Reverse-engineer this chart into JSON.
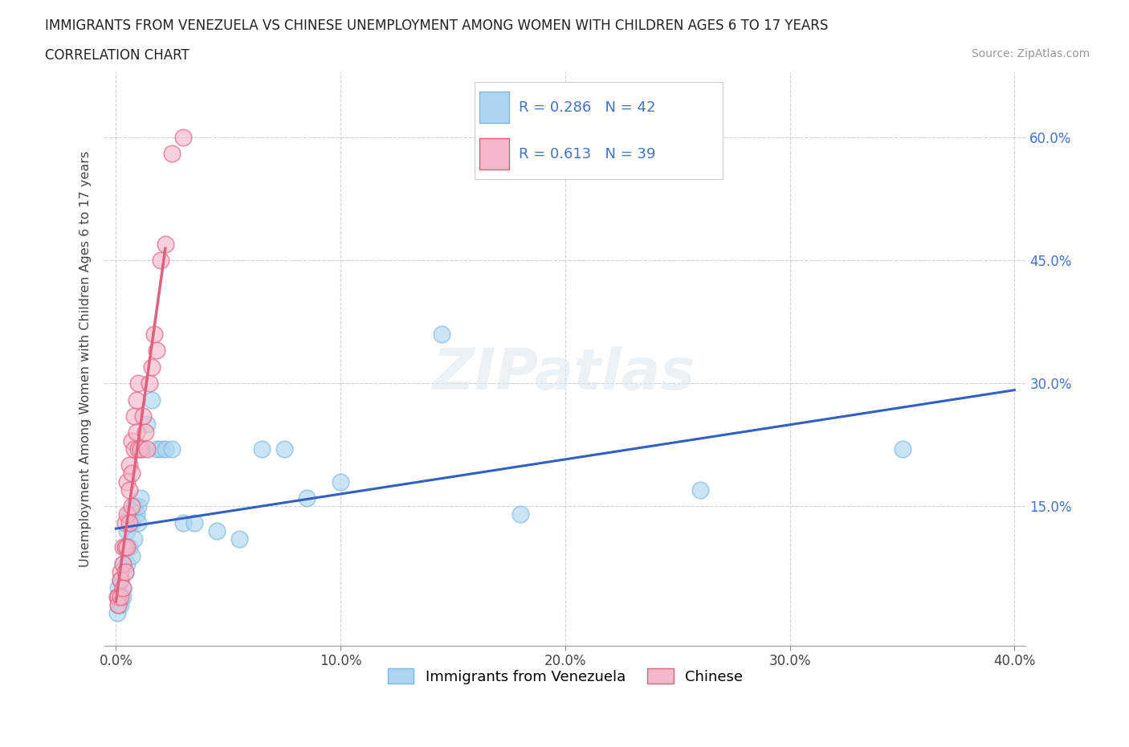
{
  "title_line1": "IMMIGRANTS FROM VENEZUELA VS CHINESE UNEMPLOYMENT AMONG WOMEN WITH CHILDREN AGES 6 TO 17 YEARS",
  "title_line2": "CORRELATION CHART",
  "source_text": "Source: ZipAtlas.com",
  "ylabel": "Unemployment Among Women with Children Ages 6 to 17 years",
  "xlim": [
    -0.005,
    0.405
  ],
  "ylim": [
    -0.02,
    0.68
  ],
  "xtick_values": [
    0.0,
    0.1,
    0.2,
    0.3,
    0.4
  ],
  "ytick_values": [
    0.15,
    0.3,
    0.45,
    0.6
  ],
  "grid_color": "#d0d0d0",
  "background_color": "#ffffff",
  "venezuela_color": "#7ab8e0",
  "venezuela_color_light": "#aed4f0",
  "chinese_color": "#f5b8c8",
  "chinese_line_color": "#e06080",
  "blue_line_color": "#3060c0",
  "R_venezuela": "0.286",
  "N_venezuela": "42",
  "R_chinese": "0.613",
  "N_chinese": "39",
  "legend_venezuela_label": "Immigrants from Venezuela",
  "legend_chinese_label": "Chinese",
  "venezuela_x": [
    0.0005,
    0.001,
    0.001,
    0.002,
    0.002,
    0.002,
    0.003,
    0.003,
    0.003,
    0.004,
    0.004,
    0.005,
    0.005,
    0.006,
    0.006,
    0.007,
    0.007,
    0.008,
    0.008,
    0.009,
    0.01,
    0.01,
    0.011,
    0.012,
    0.014,
    0.016,
    0.018,
    0.02,
    0.022,
    0.025,
    0.03,
    0.035,
    0.045,
    0.055,
    0.065,
    0.075,
    0.085,
    0.1,
    0.145,
    0.18,
    0.26,
    0.35
  ],
  "venezuela_y": [
    0.02,
    0.05,
    0.03,
    0.06,
    0.04,
    0.03,
    0.08,
    0.05,
    0.04,
    0.1,
    0.07,
    0.12,
    0.08,
    0.14,
    0.1,
    0.13,
    0.09,
    0.15,
    0.11,
    0.14,
    0.15,
    0.13,
    0.16,
    0.22,
    0.25,
    0.28,
    0.22,
    0.22,
    0.22,
    0.22,
    0.13,
    0.13,
    0.12,
    0.11,
    0.22,
    0.22,
    0.16,
    0.18,
    0.36,
    0.14,
    0.17,
    0.22
  ],
  "chinese_x": [
    0.0005,
    0.001,
    0.001,
    0.002,
    0.002,
    0.002,
    0.003,
    0.003,
    0.003,
    0.004,
    0.004,
    0.004,
    0.005,
    0.005,
    0.005,
    0.006,
    0.006,
    0.006,
    0.007,
    0.007,
    0.007,
    0.008,
    0.008,
    0.009,
    0.009,
    0.01,
    0.01,
    0.011,
    0.012,
    0.013,
    0.014,
    0.015,
    0.016,
    0.017,
    0.018,
    0.02,
    0.022,
    0.025,
    0.03
  ],
  "chinese_y": [
    0.04,
    0.04,
    0.03,
    0.07,
    0.06,
    0.04,
    0.1,
    0.08,
    0.05,
    0.13,
    0.1,
    0.07,
    0.18,
    0.14,
    0.1,
    0.2,
    0.17,
    0.13,
    0.23,
    0.19,
    0.15,
    0.26,
    0.22,
    0.28,
    0.24,
    0.3,
    0.22,
    0.22,
    0.26,
    0.24,
    0.22,
    0.3,
    0.32,
    0.36,
    0.34,
    0.45,
    0.47,
    0.58,
    0.6
  ]
}
